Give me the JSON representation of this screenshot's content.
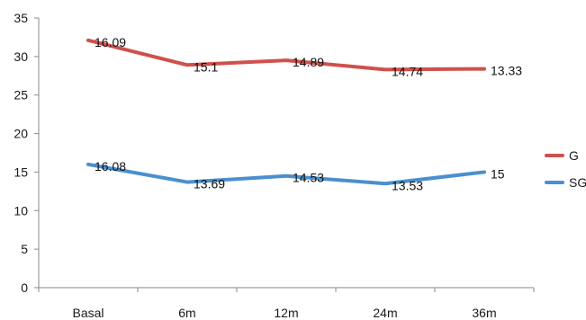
{
  "chart_data": {
    "type": "line",
    "title": "",
    "xlabel": "",
    "ylabel": "",
    "categories": [
      "Basal",
      "6m",
      "12m",
      "24m",
      "36m"
    ],
    "ylim": [
      0,
      35
    ],
    "yticks": [
      0,
      5,
      10,
      15,
      20,
      25,
      30,
      35
    ],
    "grid": false,
    "legend_position": "right",
    "series": [
      {
        "name": "G",
        "color": "#d0504c",
        "values": [
          32.1,
          28.9,
          29.5,
          28.3,
          28.4
        ],
        "data_labels": [
          "16.09",
          "15.1",
          "14.89",
          "14.74",
          "13.33"
        ]
      },
      {
        "name": "SG",
        "color": "#4a8fcf",
        "values": [
          16.0,
          13.7,
          14.5,
          13.5,
          15.0
        ],
        "data_labels": [
          "16.08",
          "13.69",
          "14.53",
          "13.53",
          "15"
        ]
      }
    ]
  }
}
